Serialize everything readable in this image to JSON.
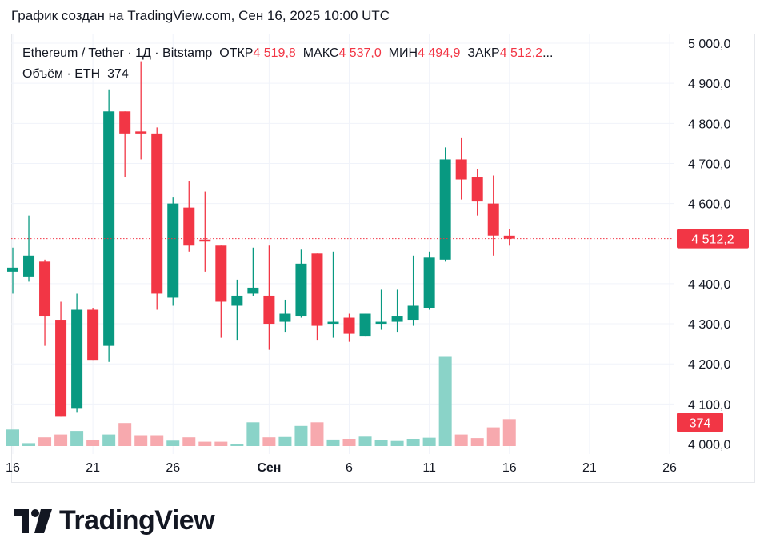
{
  "header": {
    "caption": "График создан на TradingView.com, Сен 16, 2025 10:00 UTC"
  },
  "legend": {
    "symbol": "Ethereum / Tether · 1Д · Bitstamp",
    "open_label": "ОТКР",
    "open_value": "4 519,8",
    "high_label": "МАКС",
    "high_value": "4 537,0",
    "low_label": "МИН",
    "low_value": "4 494,9",
    "close_label": "ЗАКР",
    "close_value": "4 512,2",
    "ellipsis": "...",
    "volume_label": "Объём · ETH",
    "volume_value": "374"
  },
  "logo": {
    "text": "TradingView"
  },
  "colors": {
    "up": "#089981",
    "down": "#f23645",
    "up_volume": "#8ad3c8",
    "down_volume": "#f7a9ae",
    "grid": "#f0f3fa",
    "price_line": "#f23645"
  },
  "chart_data": {
    "type": "candlestick",
    "title": "Ethereum / Tether · 1Д · Bitstamp",
    "y_ticks": [
      "5 000,0",
      "4 900,0",
      "4 800,0",
      "4 700,0",
      "4 600,0",
      "4 400,0",
      "4 300,0",
      "4 200,0",
      "4 100,0",
      "4 000,0"
    ],
    "y_tick_values": [
      5000,
      4900,
      4800,
      4700,
      4600,
      4400,
      4300,
      4200,
      4100,
      4000
    ],
    "ylim": [
      3995,
      5020
    ],
    "x_ticks": [
      {
        "label": "16",
        "day": 0
      },
      {
        "label": "21",
        "day": 5
      },
      {
        "label": "26",
        "day": 10
      },
      {
        "label": "Сен",
        "day": 16
      },
      {
        "label": "6",
        "day": 21
      },
      {
        "label": "11",
        "day": 26
      },
      {
        "label": "16",
        "day": 31
      },
      {
        "label": "21",
        "day": 36
      },
      {
        "label": "26",
        "day": 41
      }
    ],
    "x_range_days": [
      -0.1,
      41.3
    ],
    "last_price_label": "4 512,2",
    "last_price": 4512.2,
    "last_volume_label": "374",
    "volume_axis_max": 1400,
    "candles": [
      {
        "date": "2025-08-16",
        "o": 4430,
        "h": 4490,
        "l": 4375,
        "c": 4440,
        "v": 230
      },
      {
        "date": "2025-08-17",
        "o": 4418,
        "h": 4570,
        "l": 4405,
        "c": 4470,
        "v": 40
      },
      {
        "date": "2025-08-18",
        "o": 4455,
        "h": 4460,
        "l": 4245,
        "c": 4320,
        "v": 120
      },
      {
        "date": "2025-08-19",
        "o": 4310,
        "h": 4355,
        "l": 4070,
        "c": 4070,
        "v": 160
      },
      {
        "date": "2025-08-20",
        "o": 4090,
        "h": 4375,
        "l": 4080,
        "c": 4335,
        "v": 210
      },
      {
        "date": "2025-08-21",
        "o": 4335,
        "h": 4340,
        "l": 4210,
        "c": 4210,
        "v": 85
      },
      {
        "date": "2025-08-22",
        "o": 4245,
        "h": 4885,
        "l": 4205,
        "c": 4830,
        "v": 160
      },
      {
        "date": "2025-08-23",
        "o": 4830,
        "h": 4830,
        "l": 4665,
        "c": 4775,
        "v": 320
      },
      {
        "date": "2025-08-24",
        "o": 4780,
        "h": 4955,
        "l": 4710,
        "c": 4775,
        "v": 150
      },
      {
        "date": "2025-08-25",
        "o": 4775,
        "h": 4790,
        "l": 4335,
        "c": 4375,
        "v": 150
      },
      {
        "date": "2025-08-26",
        "o": 4365,
        "h": 4615,
        "l": 4345,
        "c": 4600,
        "v": 75
      },
      {
        "date": "2025-08-27",
        "o": 4590,
        "h": 4655,
        "l": 4480,
        "c": 4495,
        "v": 120
      },
      {
        "date": "2025-08-28",
        "o": 4510,
        "h": 4630,
        "l": 4430,
        "c": 4505,
        "v": 60
      },
      {
        "date": "2025-08-29",
        "o": 4495,
        "h": 4495,
        "l": 4265,
        "c": 4355,
        "v": 60
      },
      {
        "date": "2025-08-30",
        "o": 4345,
        "h": 4410,
        "l": 4260,
        "c": 4370,
        "v": 30
      },
      {
        "date": "2025-08-31",
        "o": 4375,
        "h": 4490,
        "l": 4370,
        "c": 4390,
        "v": 330
      },
      {
        "date": "2025-09-01",
        "o": 4370,
        "h": 4495,
        "l": 4235,
        "c": 4300,
        "v": 120
      },
      {
        "date": "2025-09-02",
        "o": 4305,
        "h": 4360,
        "l": 4280,
        "c": 4325,
        "v": 125
      },
      {
        "date": "2025-09-03",
        "o": 4320,
        "h": 4485,
        "l": 4315,
        "c": 4450,
        "v": 280
      },
      {
        "date": "2025-09-04",
        "o": 4475,
        "h": 4475,
        "l": 4260,
        "c": 4295,
        "v": 330
      },
      {
        "date": "2025-09-05",
        "o": 4300,
        "h": 4480,
        "l": 4265,
        "c": 4305,
        "v": 90
      },
      {
        "date": "2025-09-06",
        "o": 4315,
        "h": 4325,
        "l": 4255,
        "c": 4275,
        "v": 100
      },
      {
        "date": "2025-09-07",
        "o": 4270,
        "h": 4325,
        "l": 4270,
        "c": 4325,
        "v": 130
      },
      {
        "date": "2025-09-08",
        "o": 4300,
        "h": 4385,
        "l": 4285,
        "c": 4305,
        "v": 85
      },
      {
        "date": "2025-09-09",
        "o": 4305,
        "h": 4385,
        "l": 4280,
        "c": 4320,
        "v": 70
      },
      {
        "date": "2025-09-10",
        "o": 4310,
        "h": 4470,
        "l": 4295,
        "c": 4345,
        "v": 100
      },
      {
        "date": "2025-09-11",
        "o": 4340,
        "h": 4480,
        "l": 4335,
        "c": 4465,
        "v": 115
      },
      {
        "date": "2025-09-12",
        "o": 4460,
        "h": 4740,
        "l": 4455,
        "c": 4710,
        "v": 1250
      },
      {
        "date": "2025-09-13",
        "o": 4710,
        "h": 4765,
        "l": 4610,
        "c": 4660,
        "v": 160
      },
      {
        "date": "2025-09-14",
        "o": 4665,
        "h": 4685,
        "l": 4570,
        "c": 4605,
        "v": 110
      },
      {
        "date": "2025-09-15",
        "o": 4600,
        "h": 4670,
        "l": 4470,
        "c": 4520,
        "v": 260
      },
      {
        "date": "2025-09-16",
        "o": 4519.8,
        "h": 4537,
        "l": 4494.9,
        "c": 4512.2,
        "v": 374
      }
    ]
  }
}
